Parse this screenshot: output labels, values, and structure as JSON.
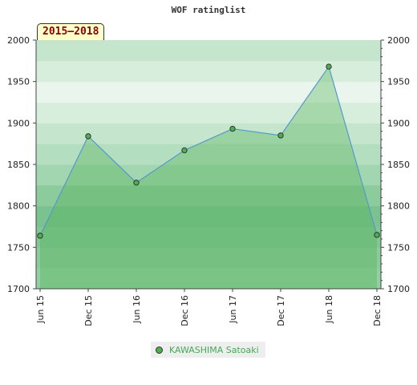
{
  "chart_data": {
    "type": "area",
    "title": "WOF ratinglist",
    "period_label": "2015–2018",
    "x": [
      "Jun 15",
      "Dec 15",
      "Jun 16",
      "Dec 16",
      "Jun 17",
      "Dec 17",
      "Jun 18",
      "Dec 18"
    ],
    "series": [
      {
        "name": "KAWASHIMA Satoaki",
        "values": [
          1764,
          1884,
          1828,
          1867,
          1893,
          1885,
          1968,
          1765
        ]
      }
    ],
    "ylim": [
      1700,
      2000
    ],
    "y_ticks": [
      1700,
      1750,
      1800,
      1850,
      1900,
      1950,
      2000
    ],
    "grid": true,
    "legend_position": "bottom",
    "colors": {
      "line": "#5599cc",
      "fill": "#4caf50",
      "marker": "#4caf50"
    }
  }
}
